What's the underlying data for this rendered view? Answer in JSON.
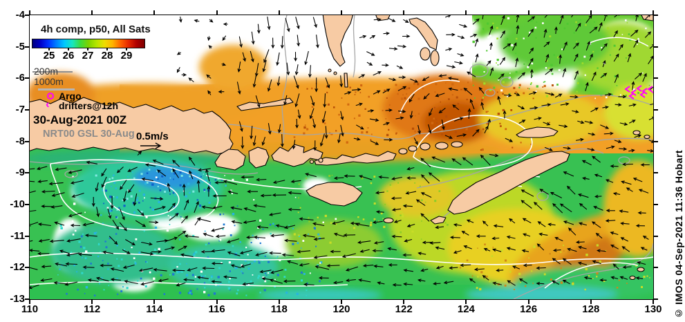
{
  "legend": {
    "title": "4h comp, p50, All Sats",
    "colorbar": {
      "ticks": [
        "25",
        "26",
        "27",
        "28",
        "29"
      ],
      "gradient": [
        "#00007F",
        "#0000C8",
        "#0032FF",
        "#0080FF",
        "#00C8FF",
        "#18E6C0",
        "#3CDC3C",
        "#7DD200",
        "#B4E600",
        "#EEDC00",
        "#FFB400",
        "#FF6400",
        "#E62800",
        "#B00000",
        "#7F0000"
      ]
    },
    "contour_labels": {
      "c200": "200m",
      "c1000": "1000m"
    },
    "argo_label": "Argo",
    "drifters_label": "drifters@12h",
    "datetime": "30-Aug-2021 00Z",
    "model_run": "NRT00 GSL 30-Aug",
    "vector_scale": "0.5m/s"
  },
  "watermark": "© IMOS 04-Sep-2021 11:36 Hobart",
  "axes": {
    "x_ticks": [
      "110",
      "112",
      "114",
      "116",
      "118",
      "120",
      "122",
      "124",
      "126",
      "128",
      "130"
    ],
    "y_ticks": [
      "-4",
      "-5",
      "-6",
      "-7",
      "-8",
      "-9",
      "-10",
      "-11",
      "-12",
      "-13"
    ]
  },
  "map_data": {
    "type": "heatmap",
    "x_range": [
      110,
      130
    ],
    "y_range": [
      -13,
      -4
    ],
    "colorbar_tick_values": [
      25,
      26,
      27,
      28,
      29
    ],
    "overlays": [
      "current vectors",
      "bathymetry contours 200m and 1000m",
      "SSH contours",
      "Argo floats",
      "drifters at 12h"
    ]
  },
  "colors": {
    "land": "#F7CBA4",
    "coast": "#000000",
    "magenta": "#FF00FF",
    "arrow": "#000000",
    "contour_gray": "#A6A6A6",
    "contour_white": "#FFFFFF"
  }
}
